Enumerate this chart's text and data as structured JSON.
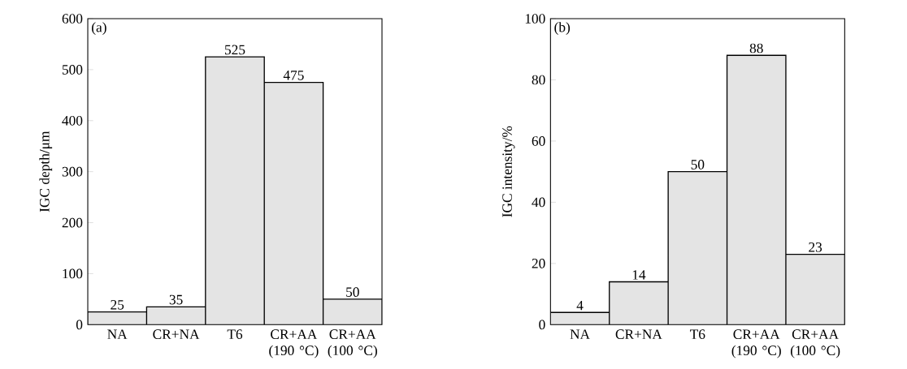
{
  "chart_data": [
    {
      "type": "bar",
      "categories": [
        "NA",
        "CR+NA",
        "T6",
        "CR+AA (190 °C)",
        "CR+AA (100 °C)"
      ],
      "values": [
        25,
        35,
        525,
        475,
        50
      ],
      "color": "#e4e4e4",
      "ylim": [
        0,
        600
      ],
      "yticks": [
        0,
        100,
        200,
        300,
        400,
        500,
        600
      ],
      "ylabel": "IGC depth/μm",
      "data_labels": true,
      "annotations": [
        "(a)"
      ]
    },
    {
      "type": "bar",
      "categories": [
        "NA",
        "CR+NA",
        "T6",
        "CR+AA (190 °C)",
        "CR+AA (100 °C)"
      ],
      "values": [
        4,
        14,
        50,
        88,
        23
      ],
      "color": "#e4e4e4",
      "ylim": [
        0,
        100
      ],
      "yticks": [
        0,
        20,
        40,
        60,
        80,
        100
      ],
      "ylabel": "IGC intensity/%",
      "data_labels": true,
      "annotations": [
        "(b)"
      ]
    }
  ]
}
